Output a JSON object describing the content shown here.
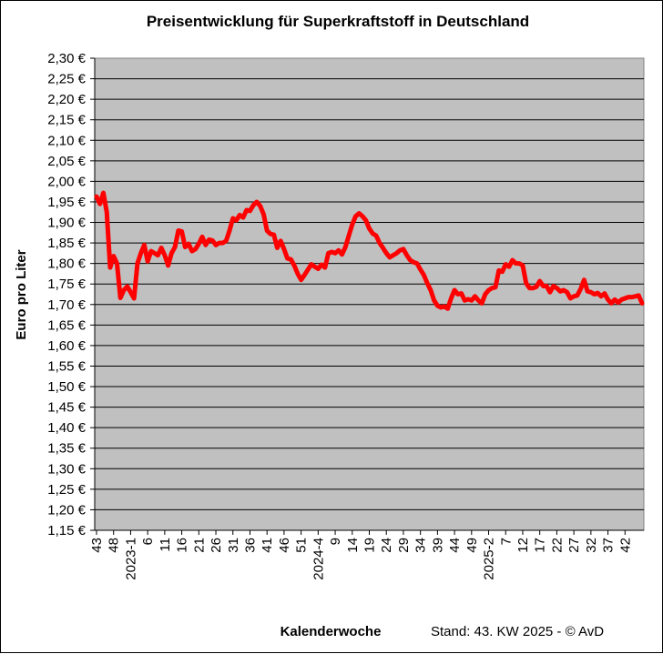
{
  "chart_data": {
    "type": "line",
    "title": "Preisentwicklung für Superkraftstoff in Deutschland",
    "xlabel": "Kalenderwoche",
    "ylabel": "Euro pro Liter",
    "note": "Stand: 43. KW 2025 - © AvD",
    "ylim": [
      1.15,
      2.3
    ],
    "y_step": 0.05,
    "y_ticks": [
      "1,15 €",
      "1,20 €",
      "1,25 €",
      "1,30 €",
      "1,35 €",
      "1,40 €",
      "1,45 €",
      "1,50 €",
      "1,55 €",
      "1,60 €",
      "1,65 €",
      "1,70 €",
      "1,75 €",
      "1,80 €",
      "1,85 €",
      "1,90 €",
      "1,95 €",
      "2,00 €",
      "2,05 €",
      "2,10 €",
      "2,15 €",
      "2,20 €",
      "2,25 €",
      "2,30 €"
    ],
    "x_tick_labels": [
      {
        "index": 0,
        "label": "43"
      },
      {
        "index": 5,
        "label": "48"
      },
      {
        "index": 10,
        "label": "2023-1"
      },
      {
        "index": 15,
        "label": "6"
      },
      {
        "index": 20,
        "label": "11"
      },
      {
        "index": 25,
        "label": "16"
      },
      {
        "index": 30,
        "label": "21"
      },
      {
        "index": 35,
        "label": "26"
      },
      {
        "index": 40,
        "label": "31"
      },
      {
        "index": 45,
        "label": "36"
      },
      {
        "index": 50,
        "label": "41"
      },
      {
        "index": 55,
        "label": "46"
      },
      {
        "index": 60,
        "label": "51"
      },
      {
        "index": 65,
        "label": "2024-4"
      },
      {
        "index": 70,
        "label": "9"
      },
      {
        "index": 75,
        "label": "14"
      },
      {
        "index": 80,
        "label": "19"
      },
      {
        "index": 85,
        "label": "24"
      },
      {
        "index": 90,
        "label": "29"
      },
      {
        "index": 95,
        "label": "34"
      },
      {
        "index": 100,
        "label": "39"
      },
      {
        "index": 105,
        "label": "44"
      },
      {
        "index": 110,
        "label": "49"
      },
      {
        "index": 115,
        "label": "2025-2"
      },
      {
        "index": 120,
        "label": "7"
      },
      {
        "index": 125,
        "label": "12"
      },
      {
        "index": 130,
        "label": "17"
      },
      {
        "index": 135,
        "label": "22"
      },
      {
        "index": 140,
        "label": "27"
      },
      {
        "index": 145,
        "label": "32"
      },
      {
        "index": 150,
        "label": "37"
      },
      {
        "index": 155,
        "label": "42"
      }
    ],
    "values": [
      1.963,
      1.945,
      1.972,
      1.925,
      1.79,
      1.818,
      1.8,
      1.716,
      1.735,
      1.744,
      1.73,
      1.715,
      1.8,
      1.825,
      1.845,
      1.805,
      1.83,
      1.825,
      1.82,
      1.838,
      1.82,
      1.795,
      1.825,
      1.84,
      1.88,
      1.878,
      1.84,
      1.848,
      1.83,
      1.835,
      1.848,
      1.865,
      1.845,
      1.858,
      1.856,
      1.845,
      1.85,
      1.85,
      1.855,
      1.88,
      1.91,
      1.905,
      1.918,
      1.912,
      1.93,
      1.928,
      1.942,
      1.95,
      1.94,
      1.92,
      1.88,
      1.872,
      1.87,
      1.838,
      1.855,
      1.835,
      1.812,
      1.81,
      1.795,
      1.775,
      1.76,
      1.772,
      1.785,
      1.798,
      1.792,
      1.787,
      1.797,
      1.79,
      1.825,
      1.828,
      1.825,
      1.832,
      1.822,
      1.84,
      1.868,
      1.895,
      1.915,
      1.922,
      1.915,
      1.905,
      1.885,
      1.873,
      1.868,
      1.85,
      1.838,
      1.825,
      1.815,
      1.82,
      1.825,
      1.832,
      1.835,
      1.82,
      1.808,
      1.803,
      1.8,
      1.785,
      1.772,
      1.752,
      1.735,
      1.71,
      1.697,
      1.693,
      1.695,
      1.69,
      1.715,
      1.735,
      1.725,
      1.727,
      1.71,
      1.713,
      1.71,
      1.72,
      1.71,
      1.703,
      1.725,
      1.735,
      1.74,
      1.742,
      1.783,
      1.78,
      1.798,
      1.792,
      1.808,
      1.8,
      1.8,
      1.795,
      1.752,
      1.74,
      1.74,
      1.743,
      1.757,
      1.745,
      1.745,
      1.73,
      1.745,
      1.74,
      1.732,
      1.735,
      1.73,
      1.715,
      1.72,
      1.722,
      1.738,
      1.76,
      1.732,
      1.73,
      1.725,
      1.728,
      1.72,
      1.727,
      1.712,
      1.703,
      1.712,
      1.705,
      1.712,
      1.715,
      1.718,
      1.718,
      1.72,
      1.722,
      1.703
    ]
  }
}
